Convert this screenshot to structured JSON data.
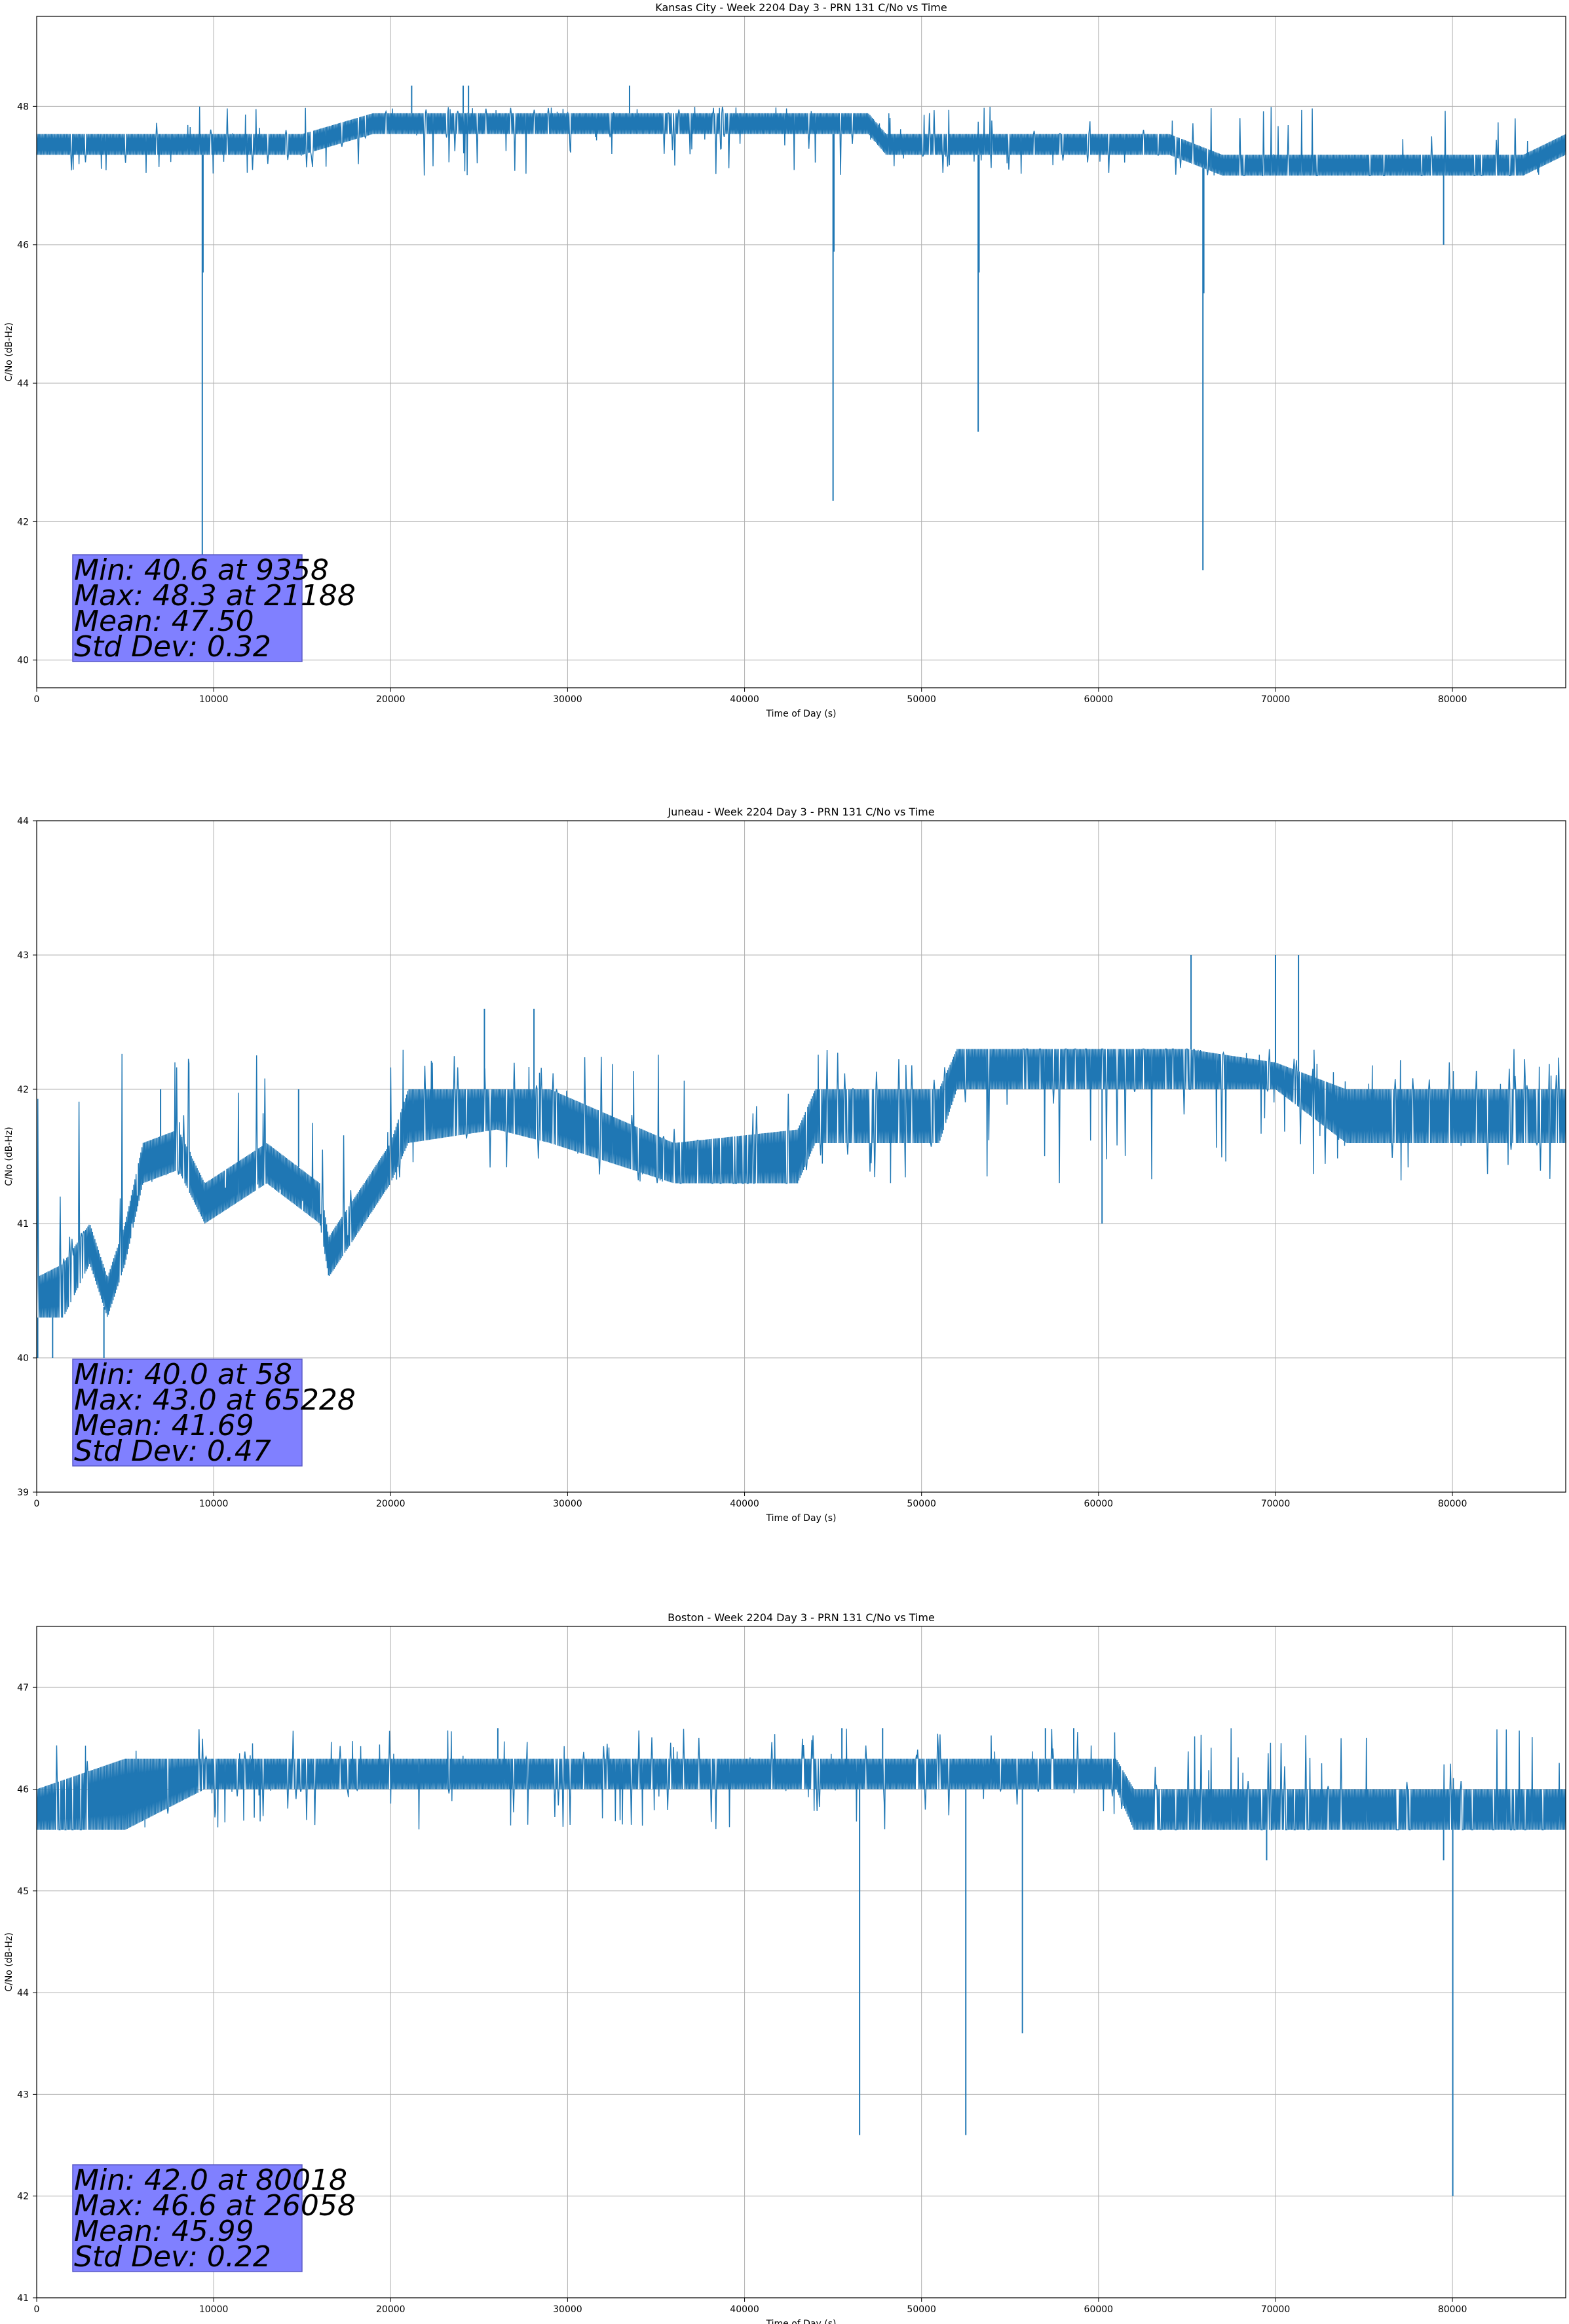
{
  "colors": {
    "series": "#1f77b4",
    "grid": "#b0b0b0",
    "statbox_fill": "#8080ff",
    "statbox_edge": "#5a5ac8"
  },
  "chart_data": [
    {
      "type": "line",
      "title": "Kansas City - Week 2204 Day 3 - PRN 131 C/No vs Time",
      "xlabel": "Time of Day (s)",
      "ylabel": "C/No (dB-Hz)",
      "xlim": [
        0,
        86400
      ],
      "ylim": [
        39.6,
        49.3
      ],
      "xticks": [
        0,
        10000,
        20000,
        30000,
        40000,
        50000,
        60000,
        70000,
        80000
      ],
      "yticks": [
        40,
        42,
        44,
        46,
        48
      ],
      "grid": true,
      "band": [
        [
          0,
          47.3,
          47.6
        ],
        [
          9000,
          47.3,
          47.6
        ],
        [
          15000,
          47.3,
          47.6
        ],
        [
          19000,
          47.6,
          47.9
        ],
        [
          29000,
          47.6,
          47.9
        ],
        [
          47000,
          47.6,
          47.9
        ],
        [
          48000,
          47.3,
          47.6
        ],
        [
          64000,
          47.3,
          47.6
        ],
        [
          67000,
          47.0,
          47.3
        ],
        [
          84000,
          47.0,
          47.3
        ],
        [
          86400,
          47.3,
          47.6
        ]
      ],
      "flicker": [
        47.0,
        48.0
      ],
      "spikes": [
        [
          9358,
          40.6
        ],
        [
          9400,
          45.6
        ],
        [
          45000,
          42.3
        ],
        [
          45050,
          45.9
        ],
        [
          53200,
          43.3
        ],
        [
          53250,
          45.6
        ],
        [
          65900,
          41.3
        ],
        [
          65950,
          45.3
        ],
        [
          79500,
          46.0
        ],
        [
          21188,
          48.3
        ],
        [
          24100,
          48.3
        ],
        [
          24400,
          48.3
        ],
        [
          33500,
          48.3
        ]
      ],
      "stats": [
        "Min: 40.6 at 9358",
        "Max: 48.3 at 21188",
        "Mean: 47.50",
        "Std Dev: 0.32"
      ]
    },
    {
      "type": "line",
      "title": "Juneau - Week 2204 Day 3 - PRN 131 C/No vs Time",
      "xlabel": "Time of Day (s)",
      "ylabel": "C/No (dB-Hz)",
      "xlim": [
        0,
        86400
      ],
      "ylim": [
        39,
        44
      ],
      "xticks": [
        0,
        10000,
        20000,
        30000,
        40000,
        50000,
        60000,
        70000,
        80000
      ],
      "yticks": [
        39,
        40,
        41,
        42,
        43,
        44
      ],
      "grid": true,
      "band": [
        [
          0,
          40.3,
          40.6
        ],
        [
          1500,
          40.3,
          40.7
        ],
        [
          3000,
          40.7,
          41.0
        ],
        [
          4000,
          40.3,
          40.6
        ],
        [
          5000,
          40.7,
          41.0
        ],
        [
          6000,
          41.3,
          41.6
        ],
        [
          8000,
          41.4,
          41.7
        ],
        [
          9500,
          41.0,
          41.3
        ],
        [
          13000,
          41.3,
          41.6
        ],
        [
          16000,
          41.0,
          41.3
        ],
        [
          16500,
          40.6,
          40.9
        ],
        [
          18500,
          41.0,
          41.3
        ],
        [
          20000,
          41.3,
          41.6
        ],
        [
          21000,
          41.6,
          42.0
        ],
        [
          26000,
          41.7,
          42.0
        ],
        [
          29000,
          41.6,
          42.0
        ],
        [
          36000,
          41.3,
          41.6
        ],
        [
          43000,
          41.3,
          41.7
        ],
        [
          44000,
          41.6,
          42.0
        ],
        [
          51000,
          41.6,
          42.0
        ],
        [
          52000,
          42.0,
          42.3
        ],
        [
          65000,
          42.0,
          42.3
        ],
        [
          70000,
          42.0,
          42.2
        ],
        [
          74000,
          41.6,
          42.0
        ],
        [
          86400,
          41.6,
          42.0
        ]
      ],
      "flicker": [
        41.3,
        42.3
      ],
      "spikes": [
        [
          58,
          40.0
        ],
        [
          900,
          40.0
        ],
        [
          3800,
          40.0
        ],
        [
          65228,
          43.0
        ],
        [
          70000,
          43.0
        ],
        [
          71300,
          43.0
        ],
        [
          25300,
          42.6
        ],
        [
          28100,
          42.6
        ],
        [
          60200,
          41.0
        ],
        [
          7000,
          42.0
        ],
        [
          14800,
          42.0
        ]
      ],
      "stats": [
        "Min: 40.0 at 58",
        "Max: 43.0 at 65228",
        "Mean: 41.69",
        "Std Dev: 0.47"
      ]
    },
    {
      "type": "line",
      "title": "Boston - Week 2204 Day 3 - PRN 131 C/No vs Time",
      "xlabel": "Time of Day (s)",
      "ylabel": "C/No (dB-Hz)",
      "xlim": [
        0,
        86400
      ],
      "ylim": [
        41,
        47.6
      ],
      "xticks": [
        0,
        10000,
        20000,
        30000,
        40000,
        50000,
        60000,
        70000,
        80000
      ],
      "yticks": [
        41,
        42,
        43,
        44,
        45,
        46,
        47
      ],
      "grid": true,
      "band": [
        [
          0,
          45.6,
          46.0
        ],
        [
          5000,
          45.6,
          46.3
        ],
        [
          9500,
          46.0,
          46.3
        ],
        [
          61000,
          46.0,
          46.3
        ],
        [
          62000,
          45.6,
          46.0
        ],
        [
          86400,
          45.6,
          46.0
        ]
      ],
      "flicker": [
        45.6,
        46.6
      ],
      "spikes": [
        [
          46500,
          42.6
        ],
        [
          52500,
          42.6
        ],
        [
          55700,
          43.6
        ],
        [
          80018,
          42.0
        ],
        [
          26058,
          46.6
        ],
        [
          45500,
          46.6
        ],
        [
          47800,
          46.6
        ],
        [
          57000,
          46.6
        ],
        [
          58600,
          46.6
        ],
        [
          69500,
          45.3
        ],
        [
          79500,
          45.3
        ]
      ],
      "stats": [
        "Min: 42.0 at 80018",
        "Max: 46.6 at 26058",
        "Mean: 45.99",
        "Std Dev: 0.22"
      ]
    }
  ]
}
